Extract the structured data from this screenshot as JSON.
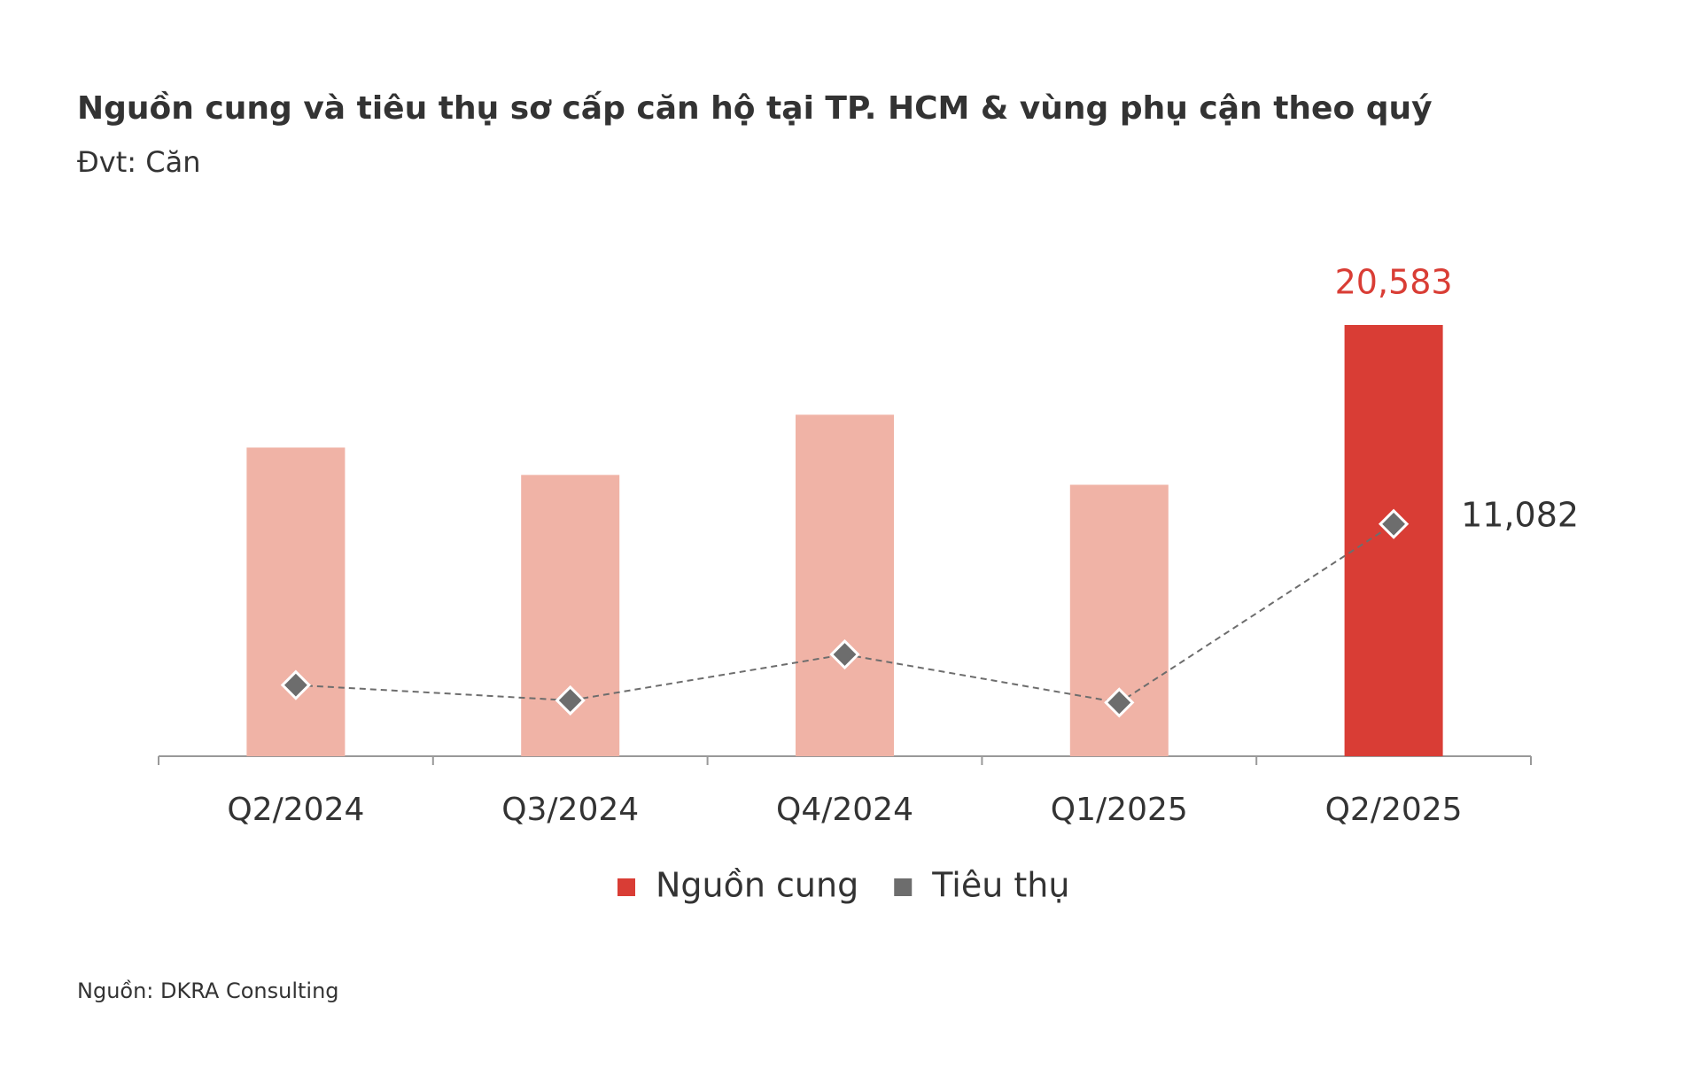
{
  "chart_data": {
    "type": "bar-line",
    "title": "Nguồn cung và tiêu thụ sơ cấp căn hộ tại TP. HCM & vùng phụ cận theo quý",
    "subtitle": "Đvt: Căn",
    "source": "Nguồn: DKRA Consulting",
    "categories": [
      "Q2/2024",
      "Q3/2024",
      "Q4/2024",
      "Q1/2025",
      "Q2/2025"
    ],
    "series": [
      {
        "name": "Nguồn cung",
        "type": "bar",
        "color": "#d93d35",
        "colors": [
          "#f0b3a6",
          "#f0b3a6",
          "#f0b3a6",
          "#f0b3a6",
          "#d93d35"
        ],
        "values": [
          14732,
          13426,
          16299,
          12956,
          20583
        ],
        "value_labels": [
          null,
          null,
          null,
          null,
          "20,583"
        ]
      },
      {
        "name": "Tiêu thụ",
        "type": "line",
        "color": "#6d6d6d",
        "values": [
          3396,
          2664,
          4858,
          2560,
          11082
        ],
        "value_labels": [
          null,
          null,
          null,
          null,
          "11,082"
        ]
      }
    ]
  }
}
